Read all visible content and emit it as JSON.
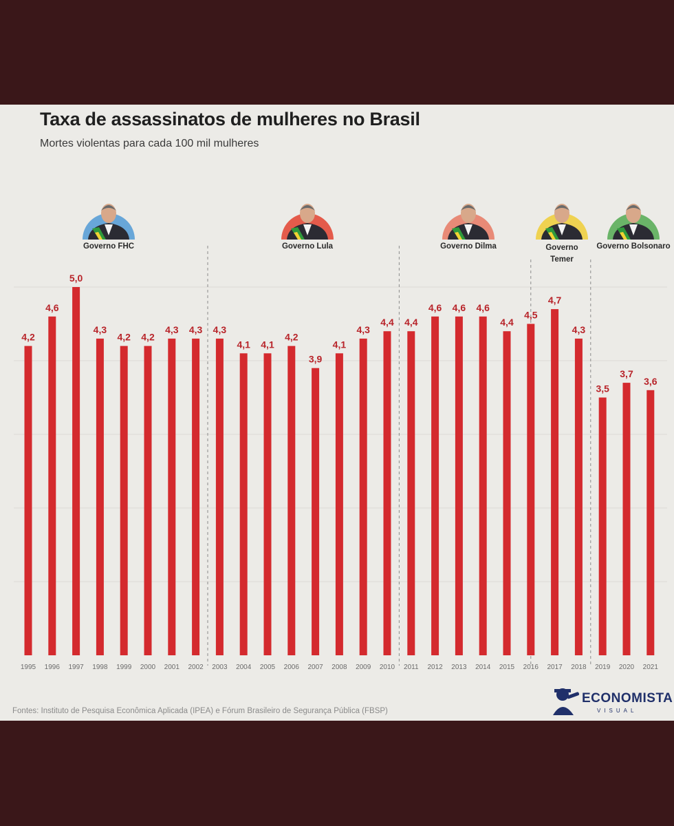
{
  "chart_data": {
    "type": "bar",
    "title": "Taxa de assassinatos de mulheres no Brasil",
    "subtitle": "Mortes violentas para cada 100 mil mulheres",
    "categories": [
      "1995",
      "1996",
      "1997",
      "1998",
      "1999",
      "2000",
      "2001",
      "2002",
      "2003",
      "2004",
      "2005",
      "2006",
      "2007",
      "2008",
      "2009",
      "2010",
      "2011",
      "2012",
      "2013",
      "2014",
      "2015",
      "2016",
      "2017",
      "2018",
      "2019",
      "2020",
      "2021"
    ],
    "values": [
      4.2,
      4.6,
      5.0,
      4.3,
      4.2,
      4.2,
      4.3,
      4.3,
      4.3,
      4.1,
      4.1,
      4.2,
      3.9,
      4.1,
      4.3,
      4.4,
      4.4,
      4.6,
      4.6,
      4.6,
      4.4,
      4.5,
      4.7,
      4.3,
      3.5,
      3.7,
      3.6
    ],
    "value_labels": [
      "4,2",
      "4,6",
      "5,0",
      "4,3",
      "4,2",
      "4,2",
      "4,3",
      "4,3",
      "4,3",
      "4,1",
      "4,1",
      "4,2",
      "3,9",
      "4,1",
      "4,3",
      "4,4",
      "4,4",
      "4,6",
      "4,6",
      "4,6",
      "4,4",
      "4,5",
      "4,7",
      "4,3",
      "3,5",
      "3,7",
      "3,6"
    ],
    "ylim": [
      0,
      5
    ],
    "grid": true,
    "bar_color": "#d42a2e",
    "label_color": "#b8242a",
    "governments": [
      {
        "name": "Governo FHC",
        "start": "1995",
        "end": "2002",
        "color": "#5a9fd6"
      },
      {
        "name": "Governo Lula",
        "start": "2003",
        "end": "2010",
        "color": "#e34b3a"
      },
      {
        "name": "Governo Dilma",
        "start": "2011",
        "end": "2016",
        "color": "#e8806a"
      },
      {
        "name": "Governo Temer",
        "start": "2016",
        "end": "2018",
        "color": "#f0cf40"
      },
      {
        "name": "Governo Bolsonaro",
        "start": "2019",
        "end": "2021",
        "color": "#5cae5a"
      }
    ]
  },
  "footer": {
    "sources": "Fontes: Instituto de Pesquisa Econômica Aplicada (IPEA) e  Fórum Brasileiro de Segurança Pública (FBSP)"
  },
  "brand": {
    "name": "ECONOMISTA",
    "tagline": "VISUAL"
  }
}
